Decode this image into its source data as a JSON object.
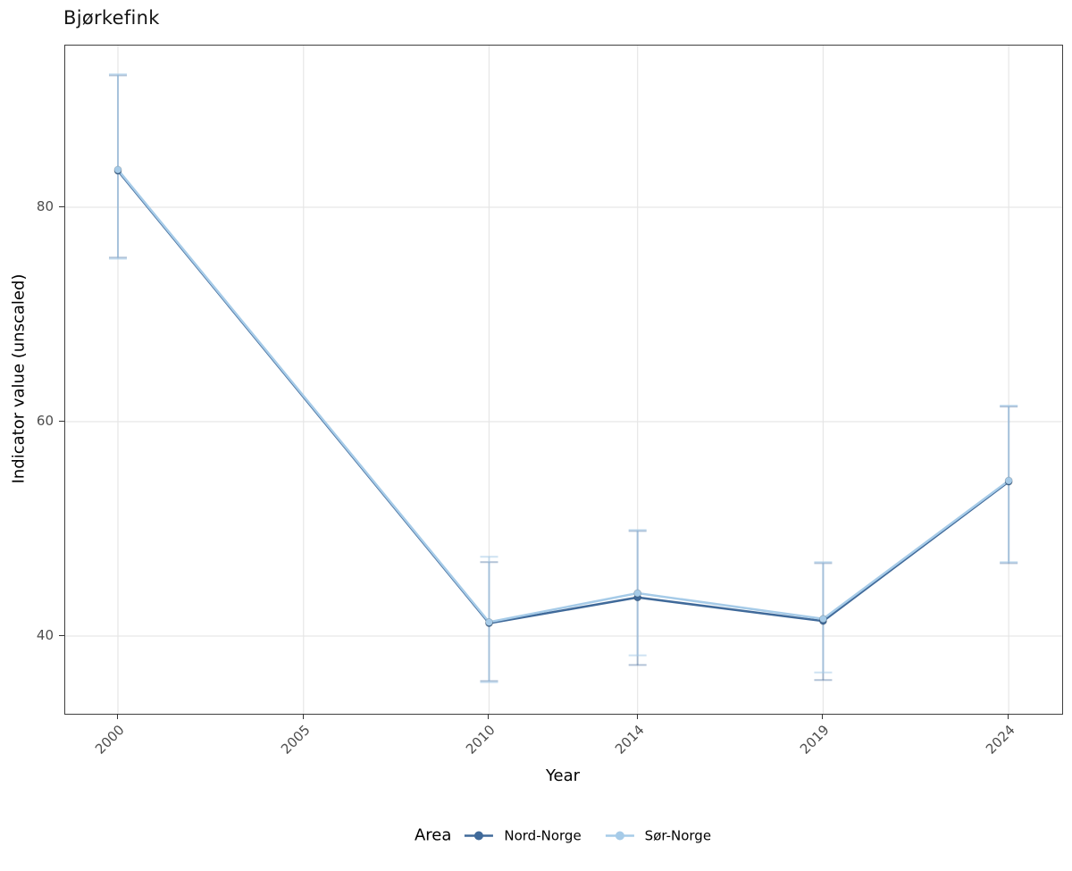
{
  "chart_data": {
    "type": "line",
    "title": "Bjørkefink",
    "xlabel": "Year",
    "ylabel": "Indicator value (unscaled)",
    "legend": {
      "title": "Area",
      "position": "bottom"
    },
    "grid": true,
    "xlim": [
      1998.58,
      2025.44
    ],
    "ylim": [
      32.75,
      95.08
    ],
    "x_ticks": [
      2000,
      2005,
      2010,
      2014,
      2019,
      2024
    ],
    "y_ticks": [
      40,
      60,
      80
    ],
    "x": [
      2000,
      2010,
      2014,
      2019,
      2024
    ],
    "series": [
      {
        "name": "Nord-Norge",
        "color": "#406a9a",
        "values": [
          83.4,
          41.2,
          43.6,
          41.4,
          54.4
        ],
        "ci_low": [
          75.3,
          35.8,
          37.3,
          35.9,
          46.8
        ],
        "ci_high": [
          92.3,
          46.9,
          49.8,
          46.8,
          61.4
        ]
      },
      {
        "name": "Sør-Norge",
        "color": "#a6cbe8",
        "values": [
          83.5,
          41.3,
          44.0,
          41.6,
          54.5
        ],
        "ci_low": [
          75.2,
          35.7,
          38.2,
          36.6,
          46.9
        ],
        "ci_high": [
          92.4,
          47.4,
          49.9,
          46.9,
          61.5
        ]
      }
    ],
    "style": {
      "grid_color": "#e6e6e6",
      "panel_border_color": "#3f3f3f",
      "tick_color": "#333333",
      "tick_label_color": "#4d4d4d",
      "errorbar_alpha_dark": 0.4,
      "errorbar_alpha_light": 0.55
    }
  }
}
